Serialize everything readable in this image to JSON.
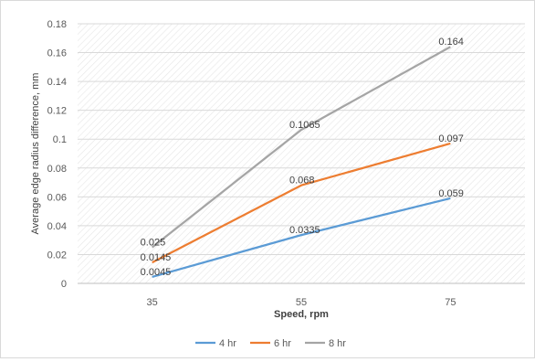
{
  "chart_data": {
    "type": "line",
    "title": "",
    "xlabel": "Speed, rpm",
    "ylabel": "Average edge radius difference, mm",
    "categories": [
      "35",
      "55",
      "75"
    ],
    "ylim": [
      0,
      0.18
    ],
    "yticks": [
      "0",
      "0.02",
      "0.04",
      "0.06",
      "0.08",
      "0.1",
      "0.12",
      "0.14",
      "0.16",
      "0.18"
    ],
    "grid": true,
    "legend_position": "bottom",
    "series": [
      {
        "name": "4 hr",
        "color": "#5b9bd5",
        "values": [
          0.0045,
          0.0335,
          0.059
        ],
        "labels": [
          "0.0045",
          "0.0335",
          "0.059"
        ]
      },
      {
        "name": "6 hr",
        "color": "#ed7d31",
        "values": [
          0.0145,
          0.068,
          0.097
        ],
        "labels": [
          "0.0145",
          "0.068",
          "0.097"
        ]
      },
      {
        "name": "8 hr",
        "color": "#a5a5a5",
        "values": [
          0.025,
          0.1065,
          0.164
        ],
        "labels": [
          "0.025",
          "0.1065",
          "0.164"
        ]
      }
    ]
  }
}
